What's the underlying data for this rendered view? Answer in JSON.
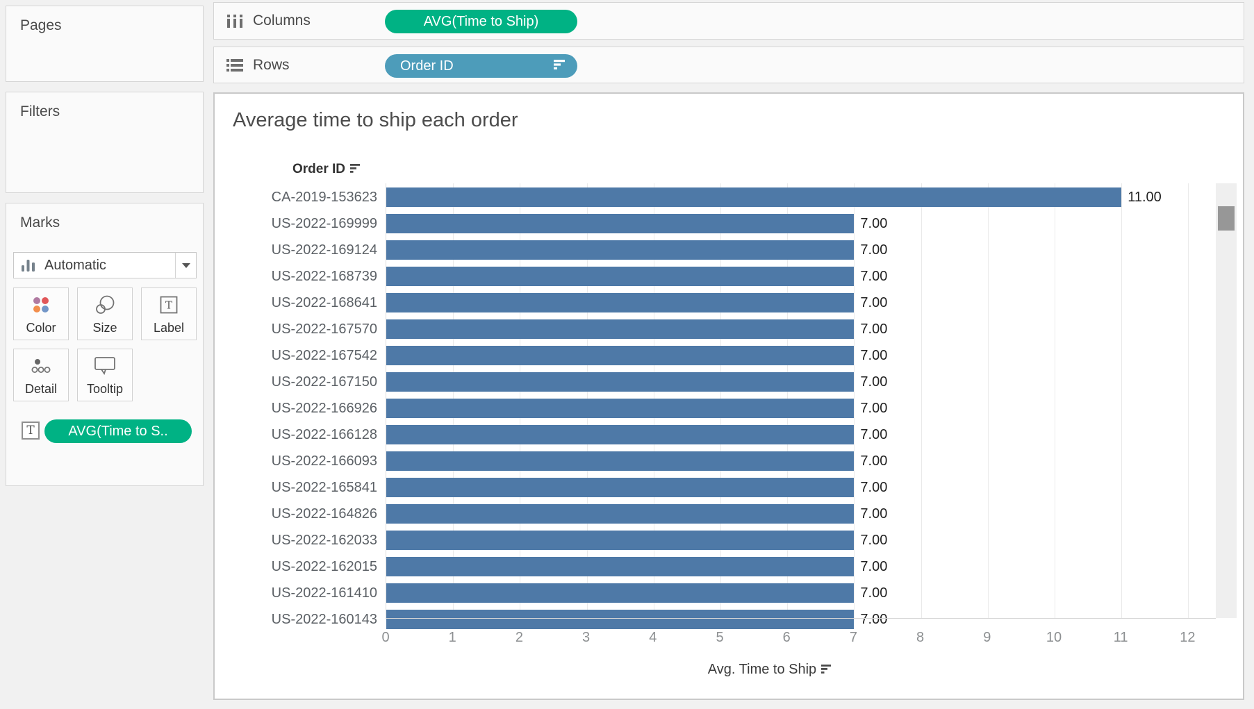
{
  "sidebar": {
    "pages_title": "Pages",
    "filters_title": "Filters",
    "marks": {
      "title": "Marks",
      "mark_type_label": "Automatic",
      "buttons": [
        {
          "label": "Color",
          "icon": "color-dots-icon"
        },
        {
          "label": "Size",
          "icon": "size-circles-icon"
        },
        {
          "label": "Label",
          "icon": "text-label-icon"
        },
        {
          "label": "Detail",
          "icon": "detail-dots-icon"
        },
        {
          "label": "Tooltip",
          "icon": "tooltip-bubble-icon"
        }
      ],
      "text_encoding_pill": "AVG(Time to S.."
    }
  },
  "shelves": {
    "columns_label": "Columns",
    "columns_pill": "AVG(Time to Ship)",
    "rows_label": "Rows",
    "rows_pill": "Order ID"
  },
  "chart_data": {
    "type": "bar",
    "orientation": "horizontal",
    "title": "Average time to ship each order",
    "row_header": "Order ID",
    "xlabel": "Avg. Time to Ship",
    "sort": "descending",
    "xlim": [
      0,
      12
    ],
    "xticks": [
      0,
      1,
      2,
      3,
      4,
      5,
      6,
      7,
      8,
      9,
      10,
      11,
      12
    ],
    "grid": true,
    "legend": "none",
    "categories": [
      "CA-2019-153623",
      "US-2022-169999",
      "US-2022-169124",
      "US-2022-168739",
      "US-2022-168641",
      "US-2022-167570",
      "US-2022-167542",
      "US-2022-167150",
      "US-2022-166926",
      "US-2022-166128",
      "US-2022-166093",
      "US-2022-165841",
      "US-2022-164826",
      "US-2022-162033",
      "US-2022-162015",
      "US-2022-161410",
      "US-2022-160143"
    ],
    "values": [
      11,
      7,
      7,
      7,
      7,
      7,
      7,
      7,
      7,
      7,
      7,
      7,
      7,
      7,
      7,
      7,
      7
    ],
    "value_labels": [
      "11.00",
      "7.00",
      "7.00",
      "7.00",
      "7.00",
      "7.00",
      "7.00",
      "7.00",
      "7.00",
      "7.00",
      "7.00",
      "7.00",
      "7.00",
      "7.00",
      "7.00",
      "7.00",
      "7.00"
    ],
    "bar_color": "#4e79a7"
  },
  "colors": {
    "measure_pill_green": "#00b284",
    "dimension_pill_blue": "#4d9cba",
    "bar_blue": "#4e79a7",
    "color_button_dots": [
      "#b07aa1",
      "#e15759",
      "#f28e4c",
      "#7396c8"
    ]
  }
}
